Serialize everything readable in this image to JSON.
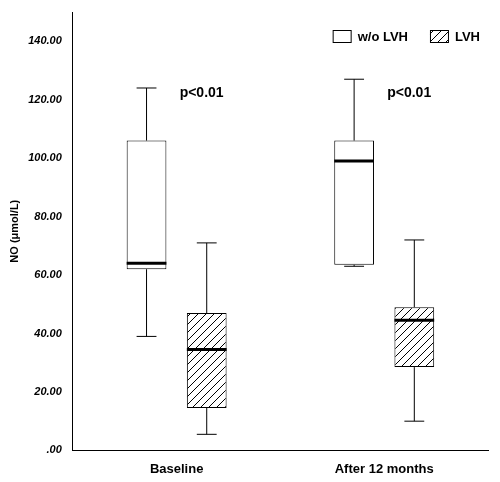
{
  "chart_data": {
    "type": "box",
    "y_label": "NO (μmol/L)",
    "categories": [
      "Baseline",
      "After 12 months"
    ],
    "series": [
      {
        "name": "w/o LVH",
        "color": "#ffffff",
        "marker": "none",
        "values": [
          {
            "min": 39,
            "q1": 62,
            "median": 64,
            "q3": 106,
            "max": 124
          },
          {
            "min": 63,
            "q1": 63.5,
            "median": 99,
            "q3": 106,
            "max": 127
          }
        ]
      },
      {
        "name": "LVH",
        "color": "#ffffff",
        "marker": "hatch",
        "values": [
          {
            "min": 5.5,
            "q1": 14.5,
            "median": 34.5,
            "q3": 47,
            "max": 71
          },
          {
            "min": 10,
            "q1": 28.5,
            "median": 44.5,
            "q3": 49,
            "max": 72
          }
        ]
      }
    ],
    "annotations": [
      {
        "text": "p<0.01",
        "category": "Baseline"
      },
      {
        "text": "p<0.01",
        "category": "After 12 months"
      }
    ],
    "ylim": [
      0,
      150
    ],
    "yticks": [
      {
        "value": 0,
        "label": ".00"
      },
      {
        "value": 20,
        "label": "20.00"
      },
      {
        "value": 40,
        "label": "40.00"
      },
      {
        "value": 60,
        "label": "60.00"
      },
      {
        "value": 80,
        "label": "80.00"
      },
      {
        "value": 100,
        "label": "100.00"
      },
      {
        "value": 120,
        "label": "120.00"
      },
      {
        "value": 140,
        "label": "140.00"
      }
    ],
    "grid": false,
    "legend": "upper right"
  }
}
